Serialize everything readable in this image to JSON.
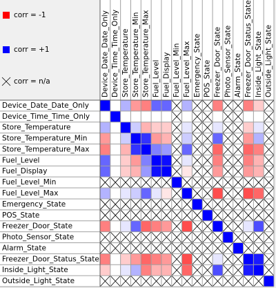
{
  "legend": [
    {
      "label": "corr = -1",
      "value": -1,
      "color": "#ff0000"
    },
    {
      "label": "corr = +1",
      "value": 1,
      "color": "#0000ff"
    },
    {
      "label": "corr = n/a",
      "value": null,
      "color": null
    }
  ],
  "variables": [
    "Device_Date_Date_Only",
    "Device_Time_Time_Only",
    "Store_Temperature",
    "Store_Temperature_Min",
    "Store_Temperature_Max",
    "Fuel_Level",
    "Fuel_Display",
    "Fuel_Level_Min",
    "Fuel_Level_Max",
    "Emergency_State",
    "POS_State",
    "Freezer_Door_State",
    "Photo_Sensor_State",
    "Alarm_State",
    "Freezer_Door_Status_State",
    "Inside_Light_State",
    "Outside_Light_State"
  ],
  "matrix": [
    [
      1,
      0,
      0.3,
      -0.4,
      -0.5,
      0.6,
      0.6,
      null,
      0.3,
      null,
      null,
      -0.5,
      null,
      null,
      -0.5,
      -0.2,
      null
    ],
    [
      0,
      1,
      0,
      0,
      0,
      0,
      0,
      null,
      0,
      null,
      null,
      0,
      null,
      null,
      0,
      0,
      null
    ],
    [
      0.3,
      0,
      1,
      0.2,
      -0.3,
      -0.2,
      -0.2,
      null,
      0.1,
      null,
      null,
      0.1,
      null,
      null,
      -0.2,
      0.1,
      null
    ],
    [
      -0.4,
      0,
      0.2,
      1,
      0.8,
      -0.4,
      -0.3,
      null,
      0.2,
      null,
      null,
      0.6,
      null,
      null,
      -0.4,
      0.3,
      null
    ],
    [
      -0.5,
      0,
      -0.3,
      0.8,
      1,
      0.5,
      0.4,
      null,
      0.6,
      null,
      null,
      -0.6,
      null,
      null,
      -0.6,
      -0.5,
      null
    ],
    [
      0.6,
      0,
      -0.2,
      -0.4,
      0.5,
      1,
      0.95,
      null,
      0.1,
      null,
      null,
      -0.5,
      null,
      null,
      -0.5,
      -0.3,
      null
    ],
    [
      0.6,
      0,
      -0.2,
      -0.3,
      0.4,
      0.95,
      1,
      null,
      -0.1,
      null,
      null,
      -0.4,
      null,
      null,
      -0.4,
      -0.3,
      null
    ],
    [
      null,
      null,
      null,
      null,
      null,
      null,
      null,
      1,
      null,
      null,
      null,
      null,
      null,
      null,
      null,
      null,
      null
    ],
    [
      0.3,
      0,
      0.1,
      0.2,
      0.6,
      0.1,
      -0.1,
      null,
      1,
      null,
      null,
      -0.7,
      null,
      null,
      -0.7,
      -0.6,
      null
    ],
    [
      null,
      null,
      null,
      null,
      null,
      null,
      null,
      null,
      null,
      1,
      null,
      null,
      null,
      null,
      null,
      null,
      null
    ],
    [
      null,
      null,
      null,
      null,
      null,
      null,
      null,
      null,
      null,
      null,
      1,
      null,
      null,
      null,
      null,
      null,
      null
    ],
    [
      -0.5,
      0,
      0.1,
      0.6,
      -0.6,
      -0.5,
      -0.4,
      null,
      -0.7,
      null,
      null,
      1,
      null,
      null,
      0.1,
      0.7,
      null
    ],
    [
      null,
      null,
      null,
      null,
      null,
      null,
      null,
      null,
      null,
      null,
      null,
      null,
      1,
      null,
      null,
      null,
      null
    ],
    [
      null,
      null,
      null,
      null,
      null,
      null,
      null,
      null,
      null,
      null,
      null,
      null,
      null,
      1,
      null,
      null,
      null
    ],
    [
      -0.5,
      0,
      -0.2,
      -0.4,
      -0.6,
      -0.5,
      -0.4,
      null,
      -0.7,
      null,
      null,
      0.1,
      null,
      null,
      1,
      0.9,
      null
    ],
    [
      -0.2,
      0,
      0.1,
      0.3,
      -0.5,
      -0.3,
      -0.3,
      null,
      -0.6,
      null,
      null,
      0.7,
      null,
      null,
      0.9,
      1,
      null
    ],
    [
      null,
      null,
      null,
      null,
      null,
      null,
      null,
      null,
      null,
      null,
      null,
      null,
      null,
      null,
      null,
      null,
      1
    ]
  ]
}
